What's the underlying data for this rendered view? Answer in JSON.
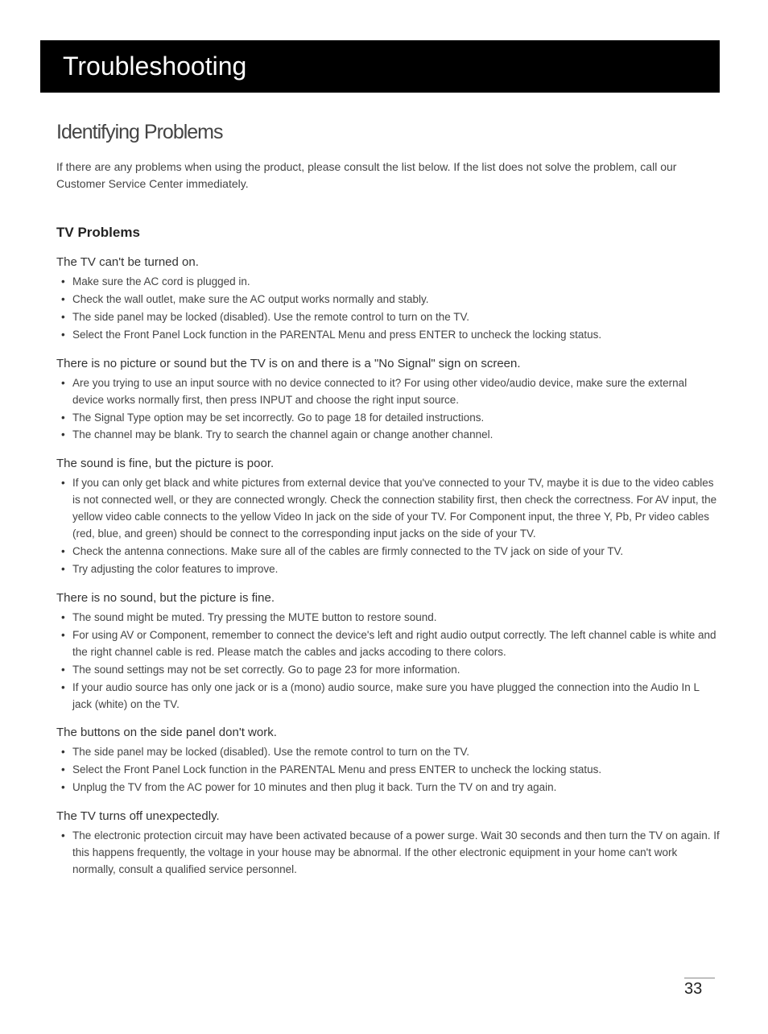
{
  "header": {
    "title": "Troubleshooting",
    "bg_color": "#000000",
    "text_color": "#ffffff"
  },
  "section": {
    "heading": "Identifying Problems",
    "intro": "If there are any problems when using the product, please consult the list below. If the list does not solve the problem, call our Customer Service Center immediately."
  },
  "subsection": {
    "heading": "TV Problems"
  },
  "problems": [
    {
      "title": "The TV can't be turned on.",
      "items": [
        "Make sure the AC cord is plugged in.",
        "Check the wall outlet, make sure the AC output works normally and stably.",
        "The side panel may be locked (disabled). Use the remote control to turn on the TV.",
        "Select the Front Panel Lock function in the PARENTAL Menu and press ENTER to uncheck the locking status."
      ]
    },
    {
      "title": "There is no picture or sound but the TV is on and there is a \"No Signal\" sign on screen.",
      "items": [
        "Are you trying to use an input source with no device connected to it? For using other video/audio device, make sure the external device works normally first, then press INPUT and choose the right input source.",
        "The Signal Type option may be set incorrectly. Go to page 18 for detailed instructions.",
        "The channel may be blank. Try to search the channel again or change another channel."
      ]
    },
    {
      "title": "The sound is fine, but the picture is poor.",
      "items": [
        "If you can only get black and white pictures from external device that you've connected to your TV, maybe it is due to the video cables is not connected well, or they are connected wrongly. Check the connection stability first, then check the correctness. For AV input, the yellow video cable connects to the yellow Video In jack on the side of your TV. For Component input, the three Y, Pb, Pr video cables (red, blue, and green) should be connect to the corresponding input jacks on the side of your TV.",
        "Check the antenna connections. Make sure all of the cables are firmly connected to the TV jack on side of your TV.",
        "Try adjusting the color features to improve."
      ]
    },
    {
      "title": "There is no sound, but the picture is fine.",
      "items": [
        "The sound might be muted. Try pressing the MUTE button to restore sound.",
        "For using AV or Component, remember to connect the device's left and right audio output correctly. The left channel cable is white and the right channel cable is red. Please match the cables and jacks accoding to there colors.",
        "The sound settings may not be set correctly. Go to page 23 for more information.",
        "If your audio source has only one jack or is a (mono) audio source, make sure you have plugged the connection into the Audio In L jack (white) on the TV."
      ]
    },
    {
      "title": "The buttons on the side panel don't work.",
      "items": [
        "The side panel may be locked (disabled). Use the remote control to turn on the TV.",
        "Select the Front Panel Lock function in the PARENTAL Menu and press ENTER to uncheck the locking status.",
        "Unplug the TV from the AC power for 10 minutes and then plug it back. Turn the TV on and try again."
      ]
    },
    {
      "title": "The TV turns off unexpectedly.",
      "items": [
        "The electronic protection circuit may have been activated because of a power surge. Wait 30 seconds and then turn the TV on again. If this happens frequently, the voltage in your house may be abnormal. If the other electronic equipment in your home can't work normally, consult a qualified service personnel."
      ]
    }
  ],
  "page_number": "33",
  "colors": {
    "page_bg": "#ffffff",
    "body_text": "#444444",
    "heading_text": "#333333"
  }
}
